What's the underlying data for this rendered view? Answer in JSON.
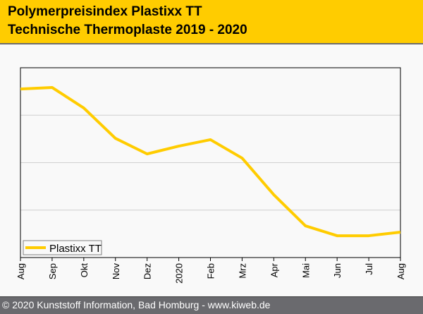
{
  "header": {
    "title_line1": "Polymerpreisindex Plastixx TT",
    "title_line2": "Technische Thermoplaste 2019 - 2020"
  },
  "footer": {
    "copyright": "© 2020 Kunststoff Information, Bad Homburg - www.kiweb.de"
  },
  "colors": {
    "brand_yellow": "#ffcc00",
    "series_line": "#ffcc00",
    "footer_bg": "#6a6a6e"
  },
  "chart_data": {
    "type": "line",
    "title": "Polymerpreisindex Plastixx TT – Technische Thermoplaste 2019 - 2020",
    "xlabel": "",
    "ylabel": "",
    "categories": [
      "Aug",
      "Sep",
      "Okt",
      "Nov",
      "Dez",
      "2020",
      "Feb",
      "Mrz",
      "Apr",
      "Mai",
      "Jun",
      "Jul",
      "Aug"
    ],
    "series": [
      {
        "name": "Plastixx TT",
        "values": [
          88.8,
          89.6,
          78.8,
          62.8,
          54.6,
          58.7,
          62.1,
          52.4,
          33.1,
          16.7,
          11.5,
          11.5,
          13.4
        ]
      }
    ],
    "ylim": [
      0,
      100
    ],
    "y_gridlines": [
      25,
      50,
      75
    ],
    "y_tick_labels_shown": false,
    "grid": true,
    "legend": {
      "position": "bottom-left",
      "entries": [
        "Plastixx TT"
      ]
    },
    "note": "Y-axis has no printed tick labels; values are on a relative 0-100 scale of the plot area."
  }
}
